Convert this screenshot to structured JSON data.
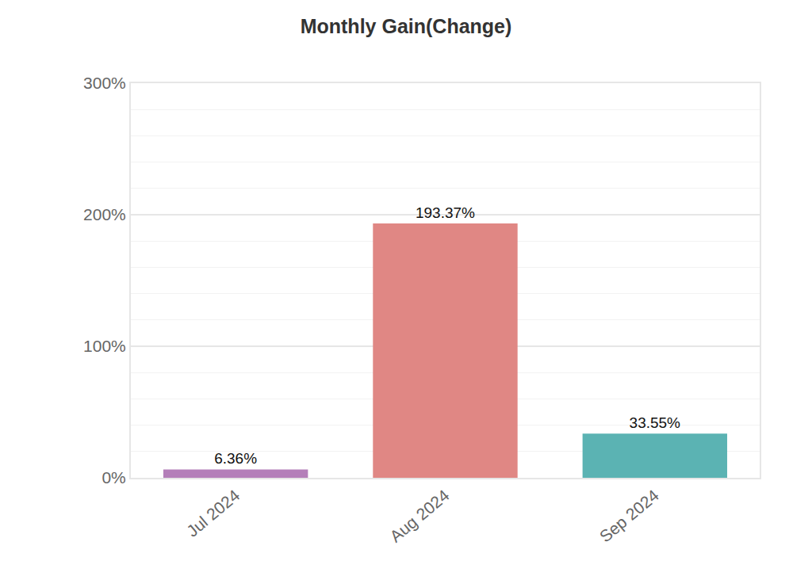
{
  "chart_data": {
    "type": "bar",
    "title": "Monthly Gain(Change)",
    "categories": [
      "Jul 2024",
      "Aug 2024",
      "Sep 2024"
    ],
    "values": [
      6.36,
      193.37,
      33.55
    ],
    "value_labels": [
      "6.36%",
      "193.37%",
      "33.55%"
    ],
    "colors": [
      "#b47fb9",
      "#e08784",
      "#5bb3b3"
    ],
    "ylim": [
      0,
      300
    ],
    "yticks": [
      {
        "value": 0,
        "label": "0%"
      },
      {
        "value": 100,
        "label": "100%"
      },
      {
        "value": 200,
        "label": "200%"
      },
      {
        "value": 300,
        "label": "300%"
      }
    ],
    "grid": true,
    "data_labels": true
  }
}
